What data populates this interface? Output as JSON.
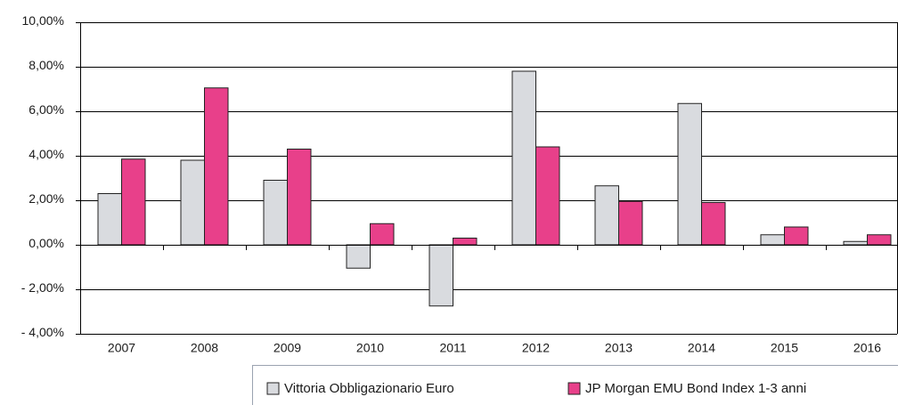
{
  "chart_data": {
    "type": "bar",
    "categories": [
      "2007",
      "2008",
      "2009",
      "2010",
      "2011",
      "2012",
      "2013",
      "2014",
      "2015",
      "2016"
    ],
    "series": [
      {
        "name": "Vittoria Obbligazionario Euro",
        "color": "#d9dbdf",
        "values": [
          2.3,
          3.8,
          2.9,
          -1.05,
          -2.75,
          7.8,
          2.65,
          6.35,
          0.45,
          0.15
        ]
      },
      {
        "name": "JP Morgan EMU Bond Index 1-3 anni",
        "color": "#e8408a",
        "values": [
          3.85,
          7.05,
          4.3,
          0.95,
          0.3,
          4.4,
          1.95,
          1.9,
          0.8,
          0.45
        ]
      }
    ],
    "ylim": [
      -4,
      10
    ],
    "yticks": [
      {
        "value": -4,
        "label": "- 4,00%"
      },
      {
        "value": -2,
        "label": "- 2,00%"
      },
      {
        "value": 0,
        "label": "0,00%"
      },
      {
        "value": 2,
        "label": "2,00%"
      },
      {
        "value": 4,
        "label": "4,00%"
      },
      {
        "value": 6,
        "label": "6,00%"
      },
      {
        "value": 8,
        "label": "8,00%"
      },
      {
        "value": 10,
        "label": "10,00%"
      }
    ],
    "grid": true
  }
}
